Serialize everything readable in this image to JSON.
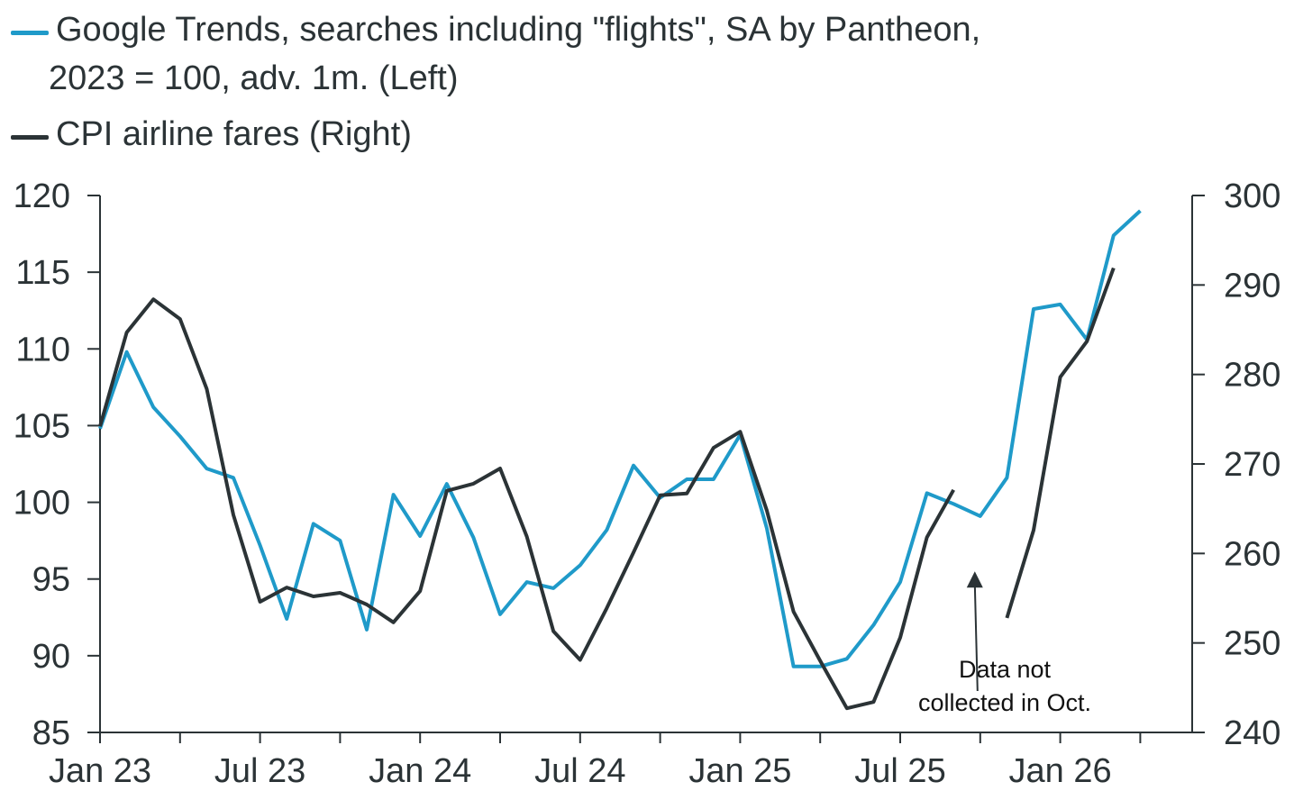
{
  "legend": {
    "line1": "Google Trends, searches including \"flights\", SA by Pantheon,",
    "line2": "2023 = 100, adv. 1m. (Left)",
    "line3": "CPI airline fares (Right)"
  },
  "annotation": {
    "line1": "Data not",
    "line2": "collected in Oct."
  },
  "colors": {
    "google": "#1f9ac9",
    "cpi": "#2b3336",
    "axis": "#2b3336"
  },
  "chart_data": {
    "type": "line",
    "title": "",
    "x_tick_labels": [
      "Jan 23",
      "Jul 23",
      "Jan 24",
      "Jul 24",
      "Jan 25",
      "Jul 25",
      "Jan 26"
    ],
    "x_tick_months": [
      0,
      6,
      12,
      18,
      24,
      30,
      36
    ],
    "x_minor_tick_months": [
      3,
      9,
      15,
      21,
      27,
      33,
      39
    ],
    "x_range_months": [
      0,
      41
    ],
    "x_start": "Jan 2023",
    "y_left": {
      "range": [
        85,
        120
      ],
      "ticks": [
        85,
        90,
        95,
        100,
        105,
        110,
        115,
        120
      ],
      "tick_labels": [
        "85",
        "90",
        "95",
        "100",
        "105",
        "110",
        "115",
        "120"
      ]
    },
    "y_right": {
      "range": [
        240,
        300
      ],
      "ticks": [
        240,
        250,
        260,
        270,
        280,
        290,
        300
      ],
      "tick_labels": [
        "240",
        "250",
        "260",
        "270",
        "280",
        "290",
        "300"
      ]
    },
    "series": [
      {
        "name": "Google Trends, searches including \"flights\", SA by Pantheon, 2023 = 100, adv. 1m. (Left)",
        "axis": "left",
        "color": "#1f9ac9",
        "points": [
          [
            0,
            104.8
          ],
          [
            1,
            109.8
          ],
          [
            2,
            106.2
          ],
          [
            3,
            104.3
          ],
          [
            4,
            102.2
          ],
          [
            5,
            101.6
          ],
          [
            6,
            97.2
          ],
          [
            7,
            92.4
          ],
          [
            8,
            98.6
          ],
          [
            9,
            97.5
          ],
          [
            10,
            91.7
          ],
          [
            11,
            100.5
          ],
          [
            12,
            97.8
          ],
          [
            13,
            101.2
          ],
          [
            14,
            97.7
          ],
          [
            15,
            92.7
          ],
          [
            16,
            94.8
          ],
          [
            17,
            94.4
          ],
          [
            18,
            95.9
          ],
          [
            19,
            98.2
          ],
          [
            20,
            102.4
          ],
          [
            21,
            100.3
          ],
          [
            22,
            101.5
          ],
          [
            23,
            101.5
          ],
          [
            24,
            104.4
          ],
          [
            25,
            98.3
          ],
          [
            26,
            89.3
          ],
          [
            27,
            89.3
          ],
          [
            28,
            89.8
          ],
          [
            29,
            92.0
          ],
          [
            30,
            94.8
          ],
          [
            31,
            100.6
          ],
          [
            32,
            99.9
          ],
          [
            33,
            99.1
          ],
          [
            34,
            101.6
          ],
          [
            35,
            112.6
          ],
          [
            36,
            112.9
          ],
          [
            37,
            110.6
          ],
          [
            38,
            117.4
          ],
          [
            39,
            119.0
          ]
        ]
      },
      {
        "name": "CPI airline fares (Right)",
        "axis": "right",
        "color": "#2b3336",
        "segments": [
          [
            [
              0,
              274.2
            ],
            [
              1,
              284.7
            ],
            [
              2,
              288.4
            ],
            [
              3,
              286.2
            ],
            [
              4,
              278.4
            ],
            [
              5,
              264.3
            ],
            [
              6,
              254.6
            ],
            [
              7,
              256.2
            ],
            [
              8,
              255.2
            ],
            [
              9,
              255.6
            ],
            [
              10,
              254.3
            ],
            [
              11,
              252.3
            ],
            [
              12,
              255.8
            ],
            [
              13,
              267.0
            ],
            [
              14,
              267.8
            ],
            [
              15,
              269.5
            ],
            [
              16,
              261.9
            ],
            [
              17,
              251.3
            ],
            [
              18,
              248.1
            ],
            [
              19,
              253.9
            ],
            [
              20,
              260.1
            ],
            [
              21,
              266.5
            ],
            [
              22,
              266.7
            ],
            [
              23,
              271.8
            ],
            [
              24,
              273.6
            ],
            [
              25,
              264.8
            ],
            [
              26,
              253.5
            ],
            [
              27,
              248.0
            ],
            [
              28,
              242.7
            ],
            [
              29,
              243.4
            ],
            [
              30,
              250.6
            ],
            [
              31,
              261.8
            ],
            [
              32,
              267.1
            ]
          ],
          [
            [
              34,
              252.8
            ],
            [
              35,
              262.6
            ],
            [
              36,
              279.7
            ],
            [
              37,
              283.7
            ],
            [
              38,
              291.9
            ]
          ]
        ]
      }
    ],
    "arrow": {
      "x_month": 33,
      "from_value_left": 87.7,
      "to_value_left": 95.5
    }
  }
}
